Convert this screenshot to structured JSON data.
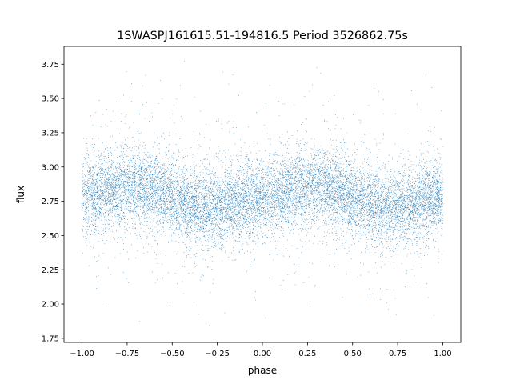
{
  "chart_data": {
    "type": "scatter",
    "title": "1SWASPJ161615.51-194816.5 Period 3526862.75s",
    "xlabel": "phase",
    "ylabel": "flux",
    "xlim": [
      -1.1,
      1.1
    ],
    "ylim": [
      1.72,
      3.88
    ],
    "xticks": [
      -1.0,
      -0.75,
      -0.5,
      -0.25,
      0.0,
      0.25,
      0.5,
      0.75,
      1.0
    ],
    "xtick_labels": [
      "−1.00",
      "−0.75",
      "−0.50",
      "−0.25",
      "0.00",
      "0.25",
      "0.50",
      "0.75",
      "1.00"
    ],
    "yticks": [
      1.75,
      2.0,
      2.25,
      2.5,
      2.75,
      3.0,
      3.25,
      3.5,
      3.75
    ],
    "ytick_labels": [
      "1.75",
      "2.00",
      "2.25",
      "2.50",
      "2.75",
      "3.00",
      "3.25",
      "3.50",
      "3.75"
    ],
    "grid": false,
    "legend": "none",
    "point_color": "#1f77b4",
    "x_range": [
      -1.0,
      1.0
    ],
    "profile_x": [
      -1.0,
      -0.9,
      -0.8,
      -0.7,
      -0.6,
      -0.5,
      -0.4,
      -0.3,
      -0.2,
      -0.1,
      0.0,
      0.1,
      0.2,
      0.3,
      0.4,
      0.5,
      0.6,
      0.7,
      0.8,
      0.9,
      1.0
    ],
    "profile_median_flux": [
      2.78,
      2.8,
      2.84,
      2.86,
      2.84,
      2.78,
      2.72,
      2.7,
      2.72,
      2.75,
      2.78,
      2.8,
      2.84,
      2.86,
      2.84,
      2.78,
      2.72,
      2.7,
      2.72,
      2.75,
      2.78
    ],
    "typical_spread": [
      2.5,
      3.05
    ],
    "flux_range": [
      1.8,
      3.78
    ],
    "approx_point_count": 14000
  }
}
